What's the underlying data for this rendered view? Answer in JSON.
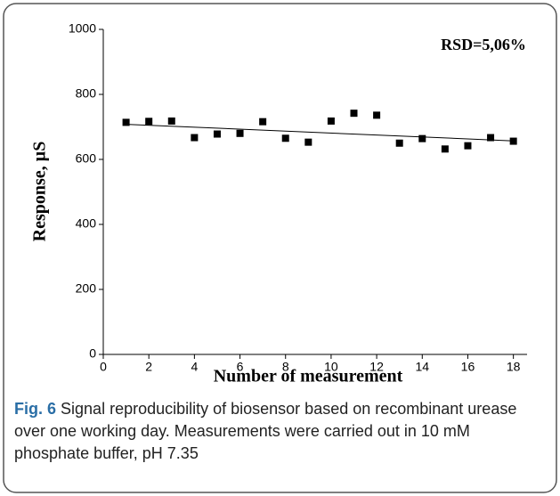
{
  "chart_data": {
    "type": "scatter",
    "xlabel": "Number of measurement",
    "ylabel": "Response, µS",
    "annotation": "RSD=5,06%",
    "x": [
      1,
      2,
      3,
      4,
      5,
      6,
      7,
      8,
      9,
      10,
      11,
      12,
      13,
      14,
      15,
      16,
      17,
      18
    ],
    "series": [
      {
        "color": "#000000",
        "values": [
          714,
          717,
          718,
          667,
          678,
          680,
          716,
          665,
          653,
          718,
          742,
          736,
          650,
          664,
          632,
          642,
          667,
          656
        ]
      }
    ],
    "fit": {
      "color": "#000000",
      "x": [
        1,
        18
      ],
      "values": [
        708,
        657
      ]
    },
    "xlim": [
      0,
      18.6
    ],
    "xticks": [
      0,
      2,
      4,
      6,
      8,
      10,
      12,
      14,
      16,
      18
    ],
    "ylim": [
      0,
      1000
    ],
    "yticks": [
      0,
      200,
      400,
      600,
      800,
      1000
    ]
  },
  "caption": {
    "label": "Fig. 6",
    "text": "Signal reproducibility of biosensor based on recombinant urease over one working day. Measurements were carried out in 10 mM phosphate buffer, pH 7.35"
  }
}
